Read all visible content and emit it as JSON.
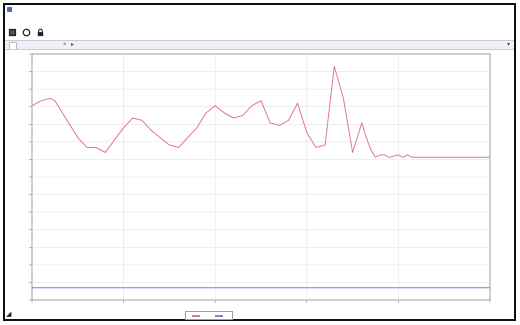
{
  "window": {
    "title": "",
    "menu": [
      "",
      "",
      "",
      "",
      ""
    ]
  },
  "toolbar": {
    "buttons": [
      {
        "name": "stop-button",
        "icon": "square-stop-icon"
      },
      {
        "name": "refresh-button",
        "icon": "circle-refresh-icon"
      },
      {
        "name": "lock-button",
        "icon": "lock-icon"
      }
    ]
  },
  "tab": {
    "label": ""
  },
  "colors": {
    "series_red": "#e3788a",
    "series_blue": "#7b7cdc",
    "grid": "#e4e4e4",
    "axis": "#888888"
  },
  "chart_data": {
    "type": "line",
    "title": "",
    "xlabel": "",
    "ylabel": "",
    "xlim": [
      0,
      100
    ],
    "ylim": [
      0,
      100
    ],
    "grid": true,
    "legend_position": "bottom",
    "series": [
      {
        "name": "",
        "color": "#e3788a",
        "x": [
          0,
          2,
          4,
          5,
          6,
          8,
          10,
          12,
          14,
          16,
          18,
          20,
          22,
          24,
          26,
          28,
          30,
          32,
          34,
          36,
          38,
          40,
          42,
          44,
          46,
          48,
          50,
          52,
          54,
          56,
          58,
          60,
          62,
          64,
          66,
          68,
          70,
          72,
          73,
          74,
          75,
          76,
          77,
          78,
          80,
          81,
          82,
          83,
          84,
          85,
          86,
          87,
          88,
          89,
          90,
          91,
          92,
          93,
          94,
          95,
          96,
          97,
          98,
          100
        ],
        "values": [
          79,
          81,
          82,
          81,
          78,
          72,
          66,
          62,
          62,
          60,
          65,
          70,
          74,
          73,
          69,
          66,
          63,
          62,
          66,
          70,
          76,
          79,
          76,
          74,
          75,
          79,
          81,
          72,
          71,
          73,
          80,
          68,
          62,
          63,
          95,
          82,
          60,
          72,
          66,
          61,
          58,
          59,
          59,
          58,
          59,
          58,
          59,
          58,
          58,
          58,
          58,
          58,
          58,
          58,
          58,
          58,
          58,
          58,
          58,
          58,
          58,
          58,
          58,
          58
        ]
      },
      {
        "name": "",
        "color": "#7b7cdc",
        "x": [
          0,
          100
        ],
        "values": [
          5,
          5
        ]
      }
    ]
  }
}
